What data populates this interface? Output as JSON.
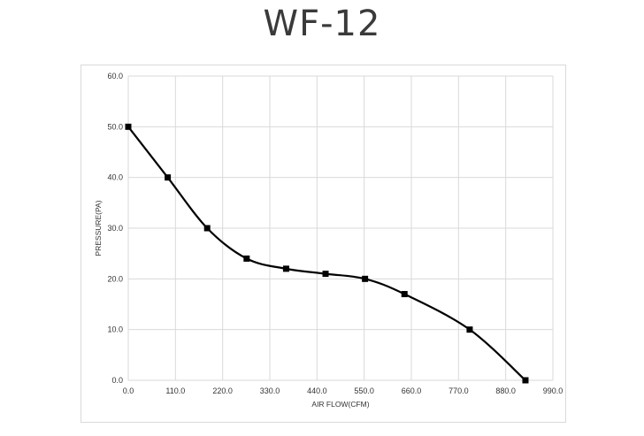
{
  "title": "WF-12",
  "chart_data": {
    "type": "line",
    "title": "WF-12",
    "xlabel": "AIR FLOW(CFM)",
    "ylabel": "PRESSURE(PA)",
    "xlim": [
      0,
      990
    ],
    "ylim": [
      0,
      60
    ],
    "x_ticks": [
      "0.0",
      "110.0",
      "220.0",
      "330.0",
      "440.0",
      "550.0",
      "660.0",
      "770.0",
      "880.0",
      "990.0"
    ],
    "y_ticks": [
      "0.0",
      "10.0",
      "20.0",
      "30.0",
      "40.0",
      "50.0",
      "60.0"
    ],
    "grid": true,
    "series": [
      {
        "color": "#000000",
        "marker": "square",
        "smooth": true,
        "points": [
          {
            "x": 0,
            "y": 50
          },
          {
            "x": 92,
            "y": 40
          },
          {
            "x": 184,
            "y": 30
          },
          {
            "x": 276,
            "y": 24
          },
          {
            "x": 368,
            "y": 22
          },
          {
            "x": 460,
            "y": 21
          },
          {
            "x": 552,
            "y": 20
          },
          {
            "x": 644,
            "y": 17
          },
          {
            "x": 796,
            "y": 10
          },
          {
            "x": 926,
            "y": 0
          }
        ]
      }
    ]
  }
}
